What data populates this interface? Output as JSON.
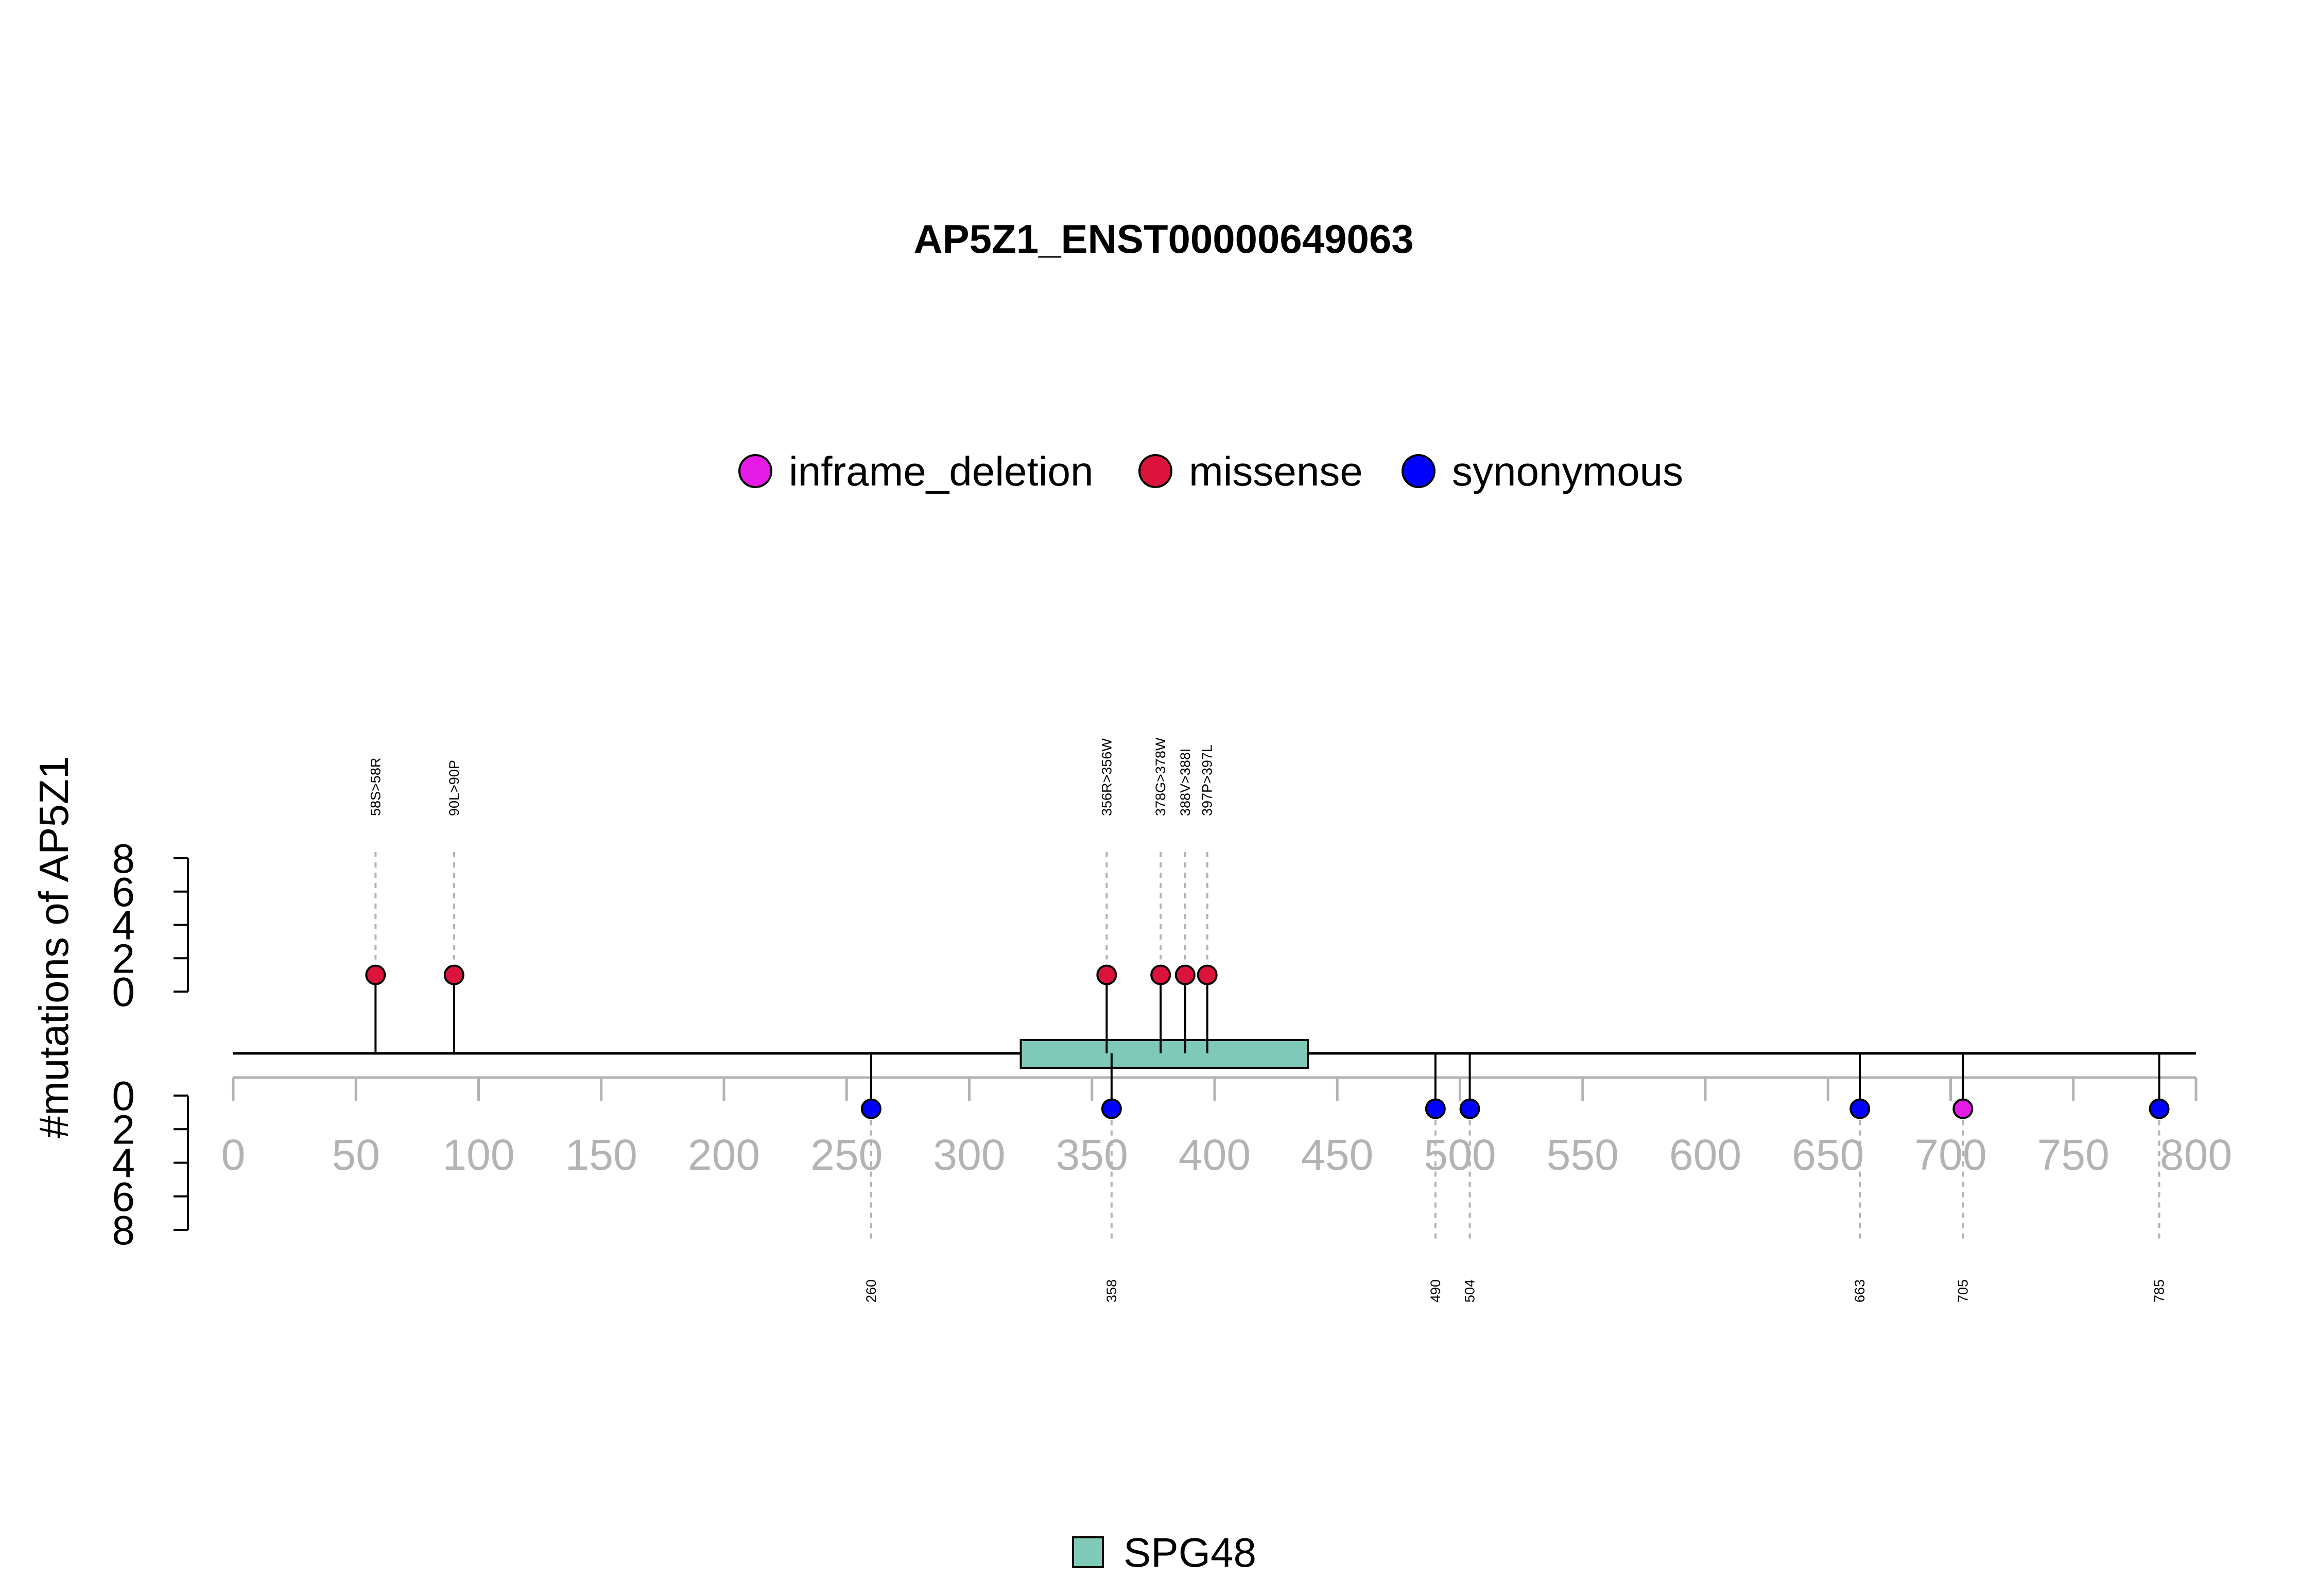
{
  "chart_data": {
    "type": "lollipop",
    "title": "AP5Z1_ENST00000649063",
    "ylabel": "#mutations of AP5Z1",
    "xlim": [
      0,
      800
    ],
    "xticks": [
      0,
      50,
      100,
      150,
      200,
      250,
      300,
      350,
      400,
      450,
      500,
      550,
      600,
      650,
      700,
      750,
      800
    ],
    "yticks": [
      0,
      2,
      4,
      6,
      8
    ],
    "ylim": [
      0,
      8
    ],
    "colors": {
      "inframe_deletion": "#e61ae6",
      "missense": "#dc143c",
      "synonymous": "#0000ff",
      "domain_fill": "#7fc9b8"
    },
    "legend": [
      "inframe_deletion",
      "missense",
      "synonymous"
    ],
    "domains": [
      {
        "name": "SPG48",
        "start": 321,
        "end": 438
      }
    ],
    "top_mutations": [
      {
        "position": 58,
        "label": "58S>58R",
        "type": "missense",
        "count": 1
      },
      {
        "position": 90,
        "label": "90L>90P",
        "type": "missense",
        "count": 1
      },
      {
        "position": 356,
        "label": "356R>356W",
        "type": "missense",
        "count": 1
      },
      {
        "position": 378,
        "label": "378G>378W",
        "type": "missense",
        "count": 1
      },
      {
        "position": 388,
        "label": "388V>388I",
        "type": "missense",
        "count": 1
      },
      {
        "position": 397,
        "label": "397P>397L",
        "type": "missense",
        "count": 1
      }
    ],
    "bottom_mutations": [
      {
        "position": 260,
        "label": "260",
        "type": "synonymous",
        "count": 1
      },
      {
        "position": 358,
        "label": "358",
        "type": "synonymous",
        "count": 1
      },
      {
        "position": 490,
        "label": "490",
        "type": "synonymous",
        "count": 1
      },
      {
        "position": 504,
        "label": "504",
        "type": "synonymous",
        "count": 1
      },
      {
        "position": 663,
        "label": "663",
        "type": "synonymous",
        "count": 1
      },
      {
        "position": 705,
        "label": "705",
        "type": "inframe_deletion",
        "count": 1
      },
      {
        "position": 785,
        "label": "785",
        "type": "synonymous",
        "count": 1
      }
    ]
  }
}
